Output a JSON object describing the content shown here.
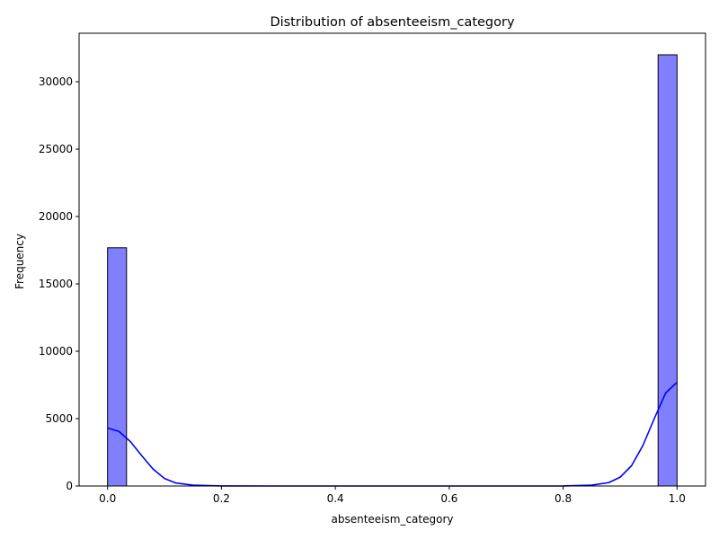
{
  "chart_data": {
    "type": "bar",
    "title": "Distribution of absenteeism_category",
    "xlabel": "absenteeism_category",
    "ylabel": "Frequency",
    "xlim": [
      -0.05,
      1.05
    ],
    "ylim": [
      0,
      33600
    ],
    "xticks": [
      0.0,
      0.2,
      0.4,
      0.6,
      0.8,
      1.0
    ],
    "xtick_labels": [
      "0.0",
      "0.2",
      "0.4",
      "0.6",
      "0.8",
      "1.0"
    ],
    "yticks": [
      0,
      5000,
      10000,
      15000,
      20000,
      25000,
      30000
    ],
    "ytick_labels": [
      "0",
      "5000",
      "10000",
      "15000",
      "20000",
      "25000",
      "30000"
    ],
    "bins": [
      {
        "x0": 0.0,
        "x1": 0.0333,
        "value": 17680
      },
      {
        "x0": 0.9667,
        "x1": 1.0,
        "value": 32000
      }
    ],
    "kde": {
      "x": [
        0.0,
        0.02,
        0.04,
        0.06,
        0.08,
        0.1,
        0.12,
        0.15,
        0.2,
        0.3,
        0.5,
        0.7,
        0.8,
        0.85,
        0.88,
        0.9,
        0.92,
        0.94,
        0.96,
        0.98,
        1.0
      ],
      "y": [
        4300,
        4050,
        3300,
        2250,
        1250,
        560,
        220,
        60,
        5,
        0,
        0,
        0,
        5,
        60,
        250,
        650,
        1500,
        3000,
        5000,
        6900,
        7700
      ]
    },
    "colors": {
      "bar_fill": "#8080ff",
      "bar_edge": "#000000",
      "kde_line": "#0000ff"
    },
    "grid": false,
    "legend": "none"
  }
}
